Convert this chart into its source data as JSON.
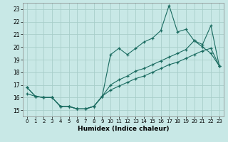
{
  "bg_color": "#c8e8e6",
  "grid_color": "#a8ceca",
  "line_color": "#1a6b60",
  "xlabel": "Humidex (Indice chaleur)",
  "xlim": [
    -0.5,
    23.5
  ],
  "ylim": [
    14.5,
    23.5
  ],
  "yticks": [
    15,
    16,
    17,
    18,
    19,
    20,
    21,
    22,
    23
  ],
  "xticks": [
    0,
    1,
    2,
    3,
    4,
    5,
    6,
    7,
    8,
    9,
    10,
    11,
    12,
    13,
    14,
    15,
    16,
    17,
    18,
    19,
    20,
    21,
    22,
    23
  ],
  "s1_y": [
    16.8,
    16.1,
    16.0,
    16.0,
    15.3,
    15.3,
    15.1,
    15.1,
    15.3,
    16.1,
    19.4,
    19.9,
    19.4,
    19.9,
    20.4,
    20.7,
    21.3,
    23.3,
    21.2,
    21.4,
    20.5,
    20.0,
    19.5,
    18.5
  ],
  "s2_y": [
    16.8,
    16.1,
    16.0,
    16.0,
    15.3,
    15.3,
    15.1,
    15.1,
    15.3,
    16.1,
    17.0,
    17.4,
    17.7,
    18.1,
    18.3,
    18.6,
    18.9,
    19.2,
    19.5,
    19.8,
    20.5,
    20.2,
    21.7,
    18.5
  ],
  "s3_y": [
    16.3,
    16.1,
    16.0,
    16.0,
    15.3,
    15.3,
    15.1,
    15.1,
    15.3,
    16.1,
    16.6,
    16.9,
    17.2,
    17.5,
    17.7,
    18.0,
    18.3,
    18.6,
    18.8,
    19.1,
    19.4,
    19.7,
    19.9,
    18.5
  ]
}
